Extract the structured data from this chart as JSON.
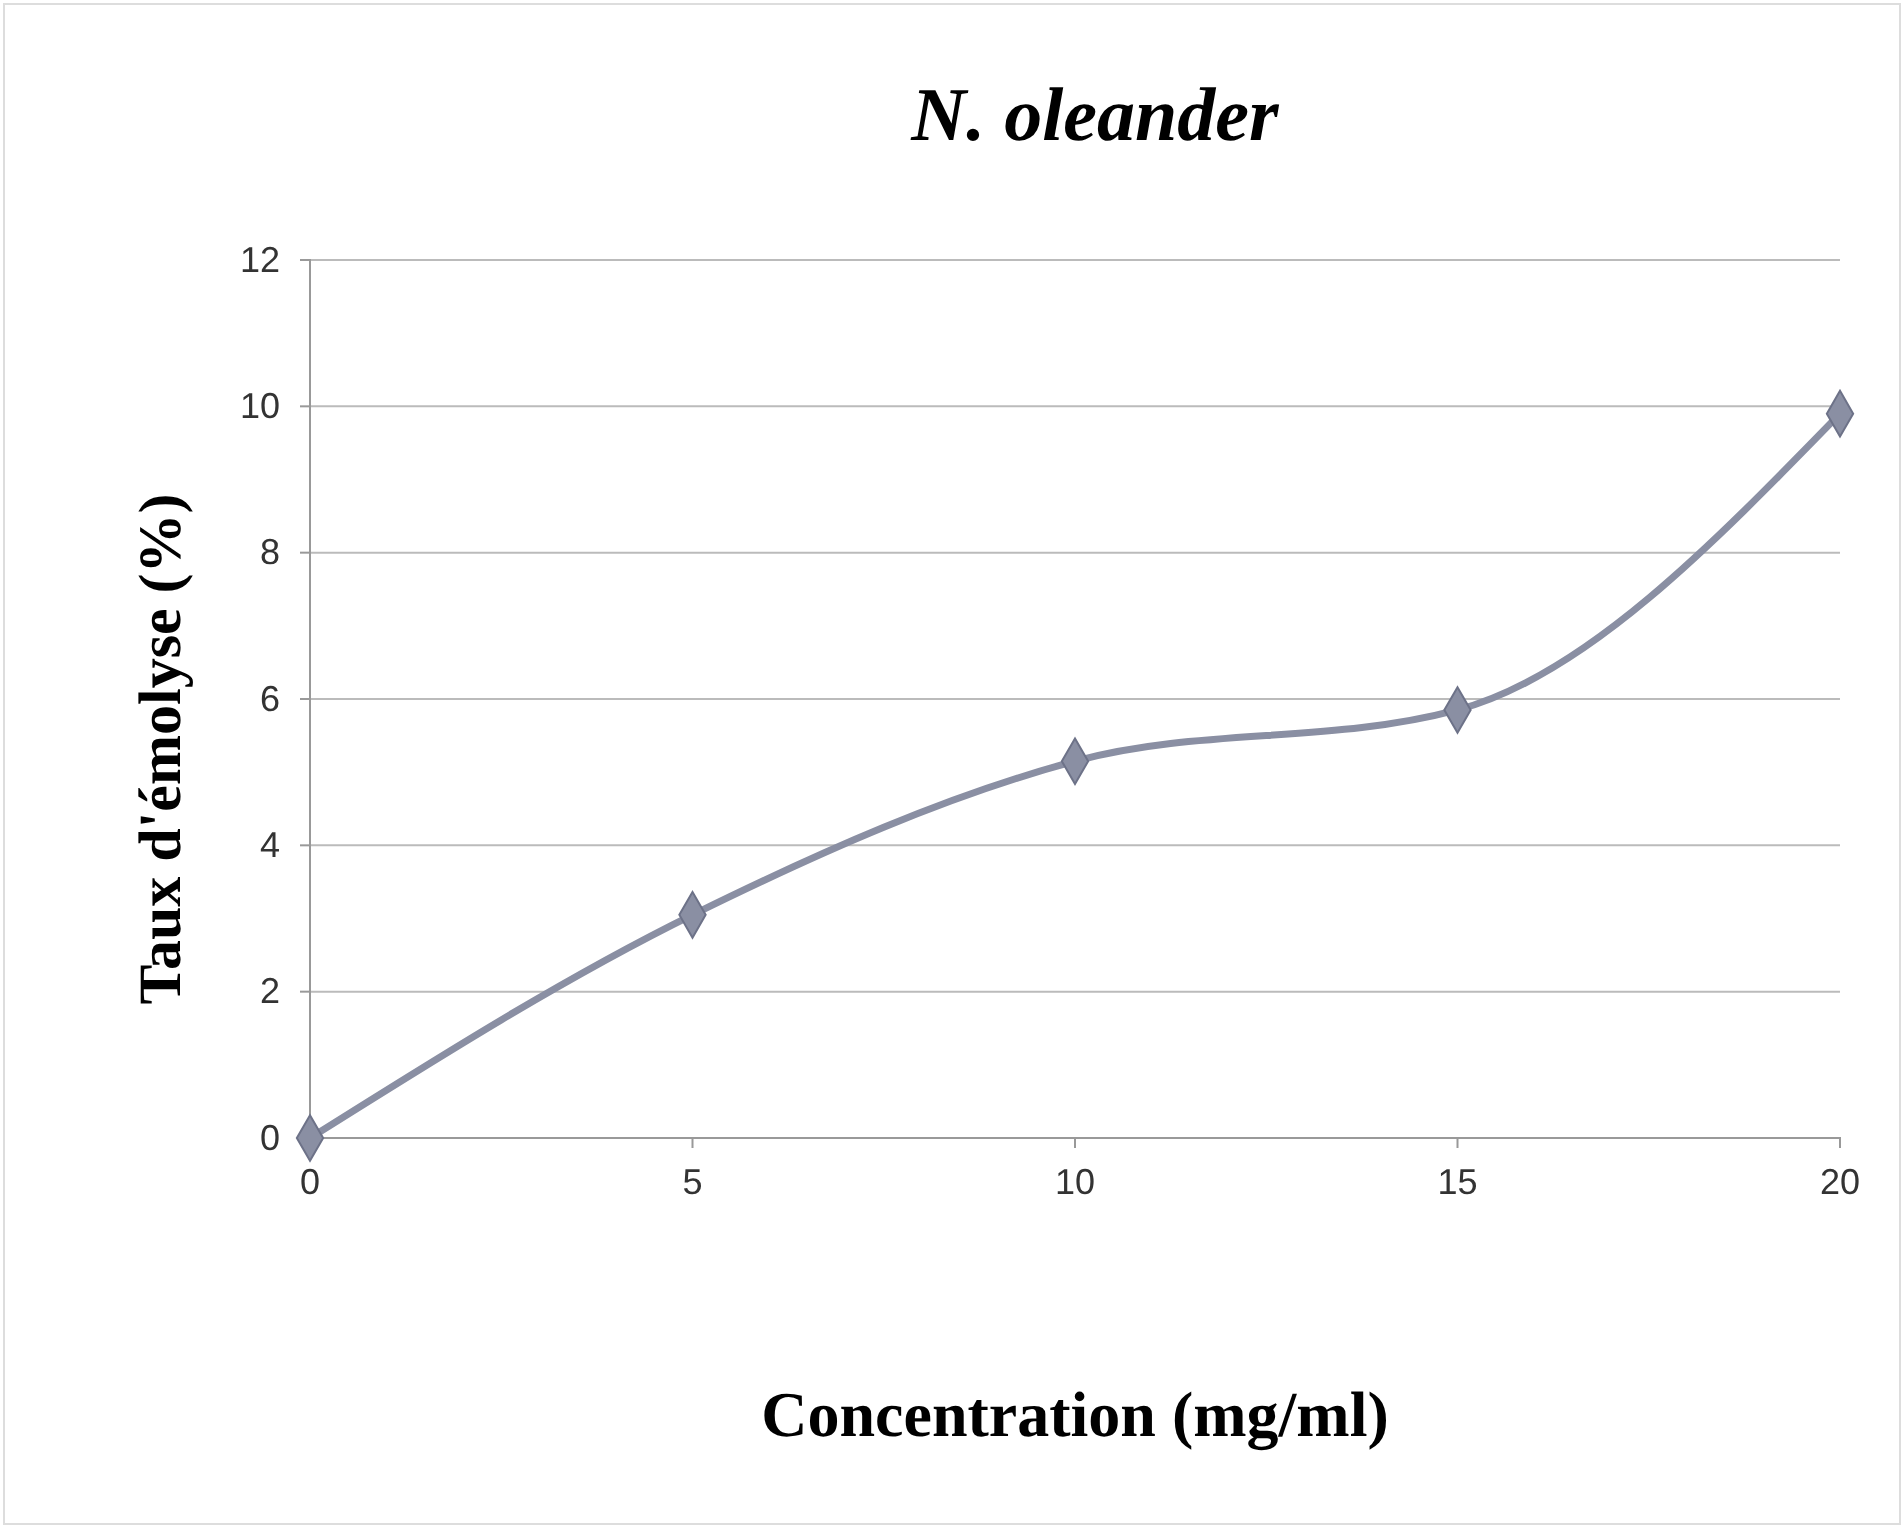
{
  "chart_data": {
    "type": "line",
    "title": "N. oleander",
    "xlabel": "Concentration (mg/ml)",
    "ylabel": "Taux d'émolyse (%)",
    "x": [
      0,
      5,
      10,
      15,
      20
    ],
    "series": [
      {
        "color": "#8a8fa3",
        "values": [
          0,
          3.05,
          5.15,
          5.85,
          9.9
        ]
      }
    ],
    "xlim": [
      0,
      20
    ],
    "xticks": [
      0,
      5,
      10,
      15,
      20
    ],
    "ylim": [
      0,
      12
    ],
    "yticks": [
      0,
      2,
      4,
      6,
      8,
      10,
      12
    ],
    "grid": "y",
    "marker": "diamond",
    "line_style": "solid"
  }
}
